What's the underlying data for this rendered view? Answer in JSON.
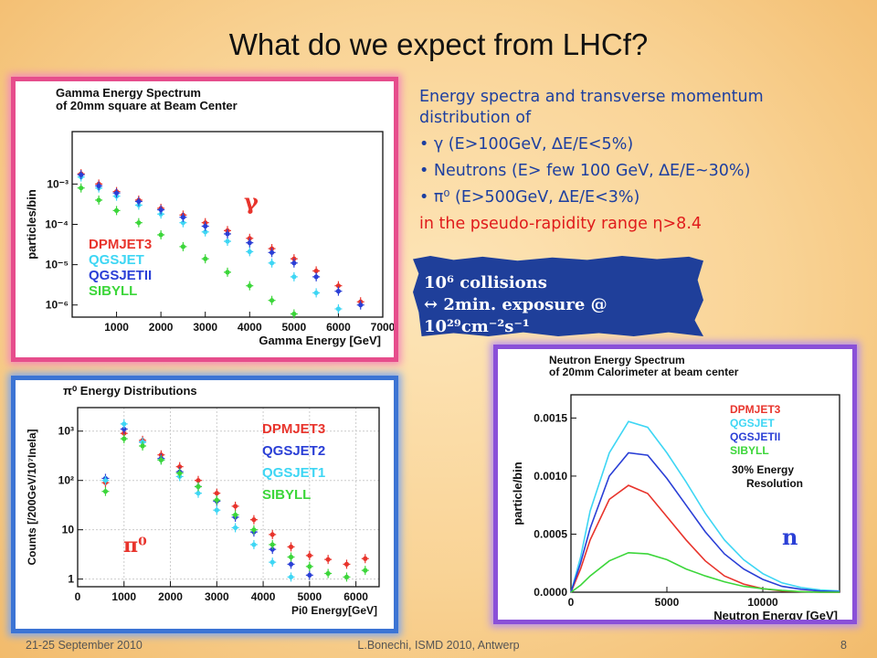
{
  "slide": {
    "title": "What do we expect from LHCf?",
    "footer_left": "21-25 September 2010",
    "footer_center": "L.Bonechi, ISMD 2010, Antwerp",
    "page_number": "8",
    "info_lines": [
      "Energy spectra and transverse momentum distribution of",
      "• γ (E>100GeV, ∆E/E<5%)",
      "• Neutrons (E> few 100 GeV, ∆E/E~30%)",
      "• π⁰ (E>500GeV, ∆E/E<3%)",
      "in the pseudo-rapidity range η>8.4"
    ],
    "banner_lines": [
      "10⁶ collisions",
      "↔ 2min. exposure @ 10²⁹cm⁻²s⁻¹"
    ]
  },
  "colors": {
    "DPMJET3": "#e8342c",
    "QGSJET": "#3ed6f4",
    "QGSJETII": "#2a3fd6",
    "SIBYLL": "#3cd63a",
    "info_text": "#1d3fa0",
    "info_red": "#e01b1b"
  },
  "chart_data": [
    {
      "type": "scatter",
      "title": "Gamma Energy Spectrum",
      "subtitle": "of 20mm square at Beam Center",
      "xlabel": "Gamma Energy [GeV]",
      "ylabel": "particles/bin",
      "xlim": [
        0,
        7000
      ],
      "ylim": [
        5e-07,
        0.02
      ],
      "yscale": "log",
      "xticks": [
        "1000",
        "2000",
        "3000",
        "4000",
        "5000",
        "6000",
        "7000"
      ],
      "yticks": [
        "10⁻³",
        "10⁻⁴",
        "10⁻⁵",
        "10⁻⁶"
      ],
      "symbol": "γ",
      "legend": [
        "DPMJET3",
        "QGSJET",
        "QGSJETII",
        "SIBYLL"
      ],
      "series": [
        {
          "name": "DPMJET3",
          "color": "#e8342c",
          "x": [
            200,
            600,
            1000,
            1500,
            2000,
            2500,
            3000,
            3500,
            4000,
            4500,
            5000,
            5500,
            6000,
            6500
          ],
          "y": [
            0.0018,
            0.001,
            0.00065,
            0.0004,
            0.00025,
            0.00017,
            0.00011,
            7e-05,
            4.5e-05,
            2.5e-05,
            1.4e-05,
            7e-06,
            3e-06,
            1.2e-06
          ]
        },
        {
          "name": "QGSJET",
          "color": "#3ed6f4",
          "x": [
            200,
            600,
            1000,
            1500,
            2000,
            2500,
            3000,
            3500,
            4000,
            4500,
            5000,
            5500,
            6000
          ],
          "y": [
            0.0015,
            0.0008,
            0.0005,
            0.0003,
            0.00018,
            0.00011,
            6.5e-05,
            3.8e-05,
            2.1e-05,
            1.1e-05,
            5e-06,
            2e-06,
            8e-07
          ]
        },
        {
          "name": "QGSJETII",
          "color": "#2a3fd6",
          "x": [
            200,
            600,
            1000,
            1500,
            2000,
            2500,
            3000,
            3500,
            4000,
            4500,
            5000,
            5500,
            6000,
            6500
          ],
          "y": [
            0.0017,
            0.0009,
            0.0006,
            0.00037,
            0.00023,
            0.00015,
            9e-05,
            5.8e-05,
            3.5e-05,
            2e-05,
            1.1e-05,
            5e-06,
            2.2e-06,
            1e-06
          ]
        },
        {
          "name": "SIBYLL",
          "color": "#3cd63a",
          "x": [
            200,
            600,
            1000,
            1500,
            2000,
            2500,
            3000,
            3500,
            4000,
            4500,
            5000
          ],
          "y": [
            0.0008,
            0.0004,
            0.00022,
            0.00011,
            5.5e-05,
            2.8e-05,
            1.4e-05,
            6.5e-06,
            3e-06,
            1.3e-06,
            6e-07
          ]
        }
      ]
    },
    {
      "type": "scatter",
      "title": "π⁰ Energy Distributions",
      "xlabel": "Pi0 Energy[GeV]",
      "ylabel": "Counts [/200GeV/10⁷Inela]",
      "xlim": [
        0,
        6500
      ],
      "ylim": [
        0.7,
        3000
      ],
      "yscale": "log",
      "xticks": [
        "0",
        "1000",
        "2000",
        "3000",
        "4000",
        "5000",
        "6000"
      ],
      "yticks": [
        "1",
        "10",
        "10²",
        "10³"
      ],
      "symbol": "π⁰",
      "legend": [
        "DPMJET3",
        "QGSJET2",
        "QGSJET1",
        "SIBYLL"
      ],
      "series": [
        {
          "name": "DPMJET3",
          "color": "#e8342c",
          "x": [
            600,
            1000,
            1400,
            1800,
            2200,
            2600,
            3000,
            3400,
            3800,
            4200,
            4600,
            5000,
            5400,
            5800,
            6200
          ],
          "y": [
            90,
            900,
            650,
            330,
            190,
            100,
            55,
            30,
            16,
            8,
            4.5,
            3,
            2.5,
            2,
            2.6
          ]
        },
        {
          "name": "QGSJET2",
          "color": "#2a3fd6",
          "x": [
            600,
            1000,
            1400,
            1800,
            2200,
            2600,
            3000,
            3400,
            3800,
            4200,
            4600,
            5000
          ],
          "y": [
            110,
            1100,
            600,
            280,
            150,
            75,
            38,
            18,
            9,
            4,
            2,
            1.2
          ]
        },
        {
          "name": "QGSJET1",
          "color": "#3ed6f4",
          "x": [
            600,
            1000,
            1400,
            1800,
            2200,
            2600,
            3000,
            3400,
            3800,
            4200,
            4600
          ],
          "y": [
            100,
            1400,
            600,
            260,
            120,
            55,
            25,
            11,
            5,
            2.2,
            1.1
          ]
        },
        {
          "name": "SIBYLL",
          "color": "#3cd63a",
          "x": [
            600,
            1000,
            1400,
            1800,
            2200,
            2600,
            3000,
            3400,
            3800,
            4200,
            4600,
            5000,
            5400,
            5800,
            6200
          ],
          "y": [
            60,
            700,
            500,
            260,
            140,
            75,
            40,
            20,
            10,
            5,
            2.8,
            1.8,
            1.3,
            1.1,
            1.5
          ]
        }
      ]
    },
    {
      "type": "line",
      "title": "Neutron Energy Spectrum",
      "subtitle": "of 20mm Calorimeter at beam center",
      "xlabel": "Neutron Energy [GeV]",
      "ylabel": "particle/bin",
      "xlim": [
        0,
        14000
      ],
      "ylim": [
        0,
        0.0017
      ],
      "xticks": [
        "0",
        "5000",
        "10000"
      ],
      "yticks": [
        "0.0000",
        "0.0005",
        "0.0010",
        "0.0015"
      ],
      "symbol": "n",
      "legend": [
        "DPMJET3",
        "QGSJET",
        "QGSJETII",
        "SIBYLL"
      ],
      "annotation": [
        "30% Energy",
        "Resolution"
      ],
      "series": [
        {
          "name": "DPMJET3",
          "color": "#e8342c",
          "x": [
            0,
            500,
            1000,
            2000,
            3000,
            4000,
            5000,
            6000,
            7000,
            8000,
            9000,
            10000,
            11000,
            12000,
            13000,
            14000
          ],
          "y": [
            0,
            0.0002,
            0.00045,
            0.0008,
            0.00092,
            0.00085,
            0.00065,
            0.00045,
            0.00027,
            0.00014,
            7e-05,
            3e-05,
            1e-05,
            5e-06,
            0,
            0
          ]
        },
        {
          "name": "QGSJET",
          "color": "#3ed6f4",
          "x": [
            0,
            500,
            1000,
            2000,
            3000,
            4000,
            5000,
            6000,
            7000,
            8000,
            9000,
            10000,
            11000,
            12000,
            13000,
            14000
          ],
          "y": [
            0,
            0.0003,
            0.0007,
            0.0012,
            0.00147,
            0.00142,
            0.0012,
            0.00095,
            0.00068,
            0.00045,
            0.00028,
            0.00016,
            8e-05,
            4e-05,
            2e-05,
            1e-05
          ]
        },
        {
          "name": "QGSJETII",
          "color": "#2a3fd6",
          "x": [
            0,
            500,
            1000,
            2000,
            3000,
            4000,
            5000,
            6000,
            7000,
            8000,
            9000,
            10000,
            11000,
            12000,
            13000,
            14000
          ],
          "y": [
            0,
            0.00025,
            0.00055,
            0.001,
            0.0012,
            0.00118,
            0.00098,
            0.00075,
            0.00052,
            0.00033,
            0.0002,
            0.00011,
            5e-05,
            2.5e-05,
            1e-05,
            5e-06
          ]
        },
        {
          "name": "SIBYLL",
          "color": "#3cd63a",
          "x": [
            0,
            500,
            1000,
            2000,
            3000,
            4000,
            5000,
            6000,
            7000,
            8000,
            9000,
            10000,
            11000,
            12000,
            13000,
            14000
          ],
          "y": [
            0,
            6e-05,
            0.00014,
            0.00027,
            0.00034,
            0.00033,
            0.00028,
            0.0002,
            0.00014,
            9e-05,
            5e-05,
            3e-05,
            1.5e-05,
            5e-06,
            0,
            0
          ]
        }
      ]
    }
  ]
}
